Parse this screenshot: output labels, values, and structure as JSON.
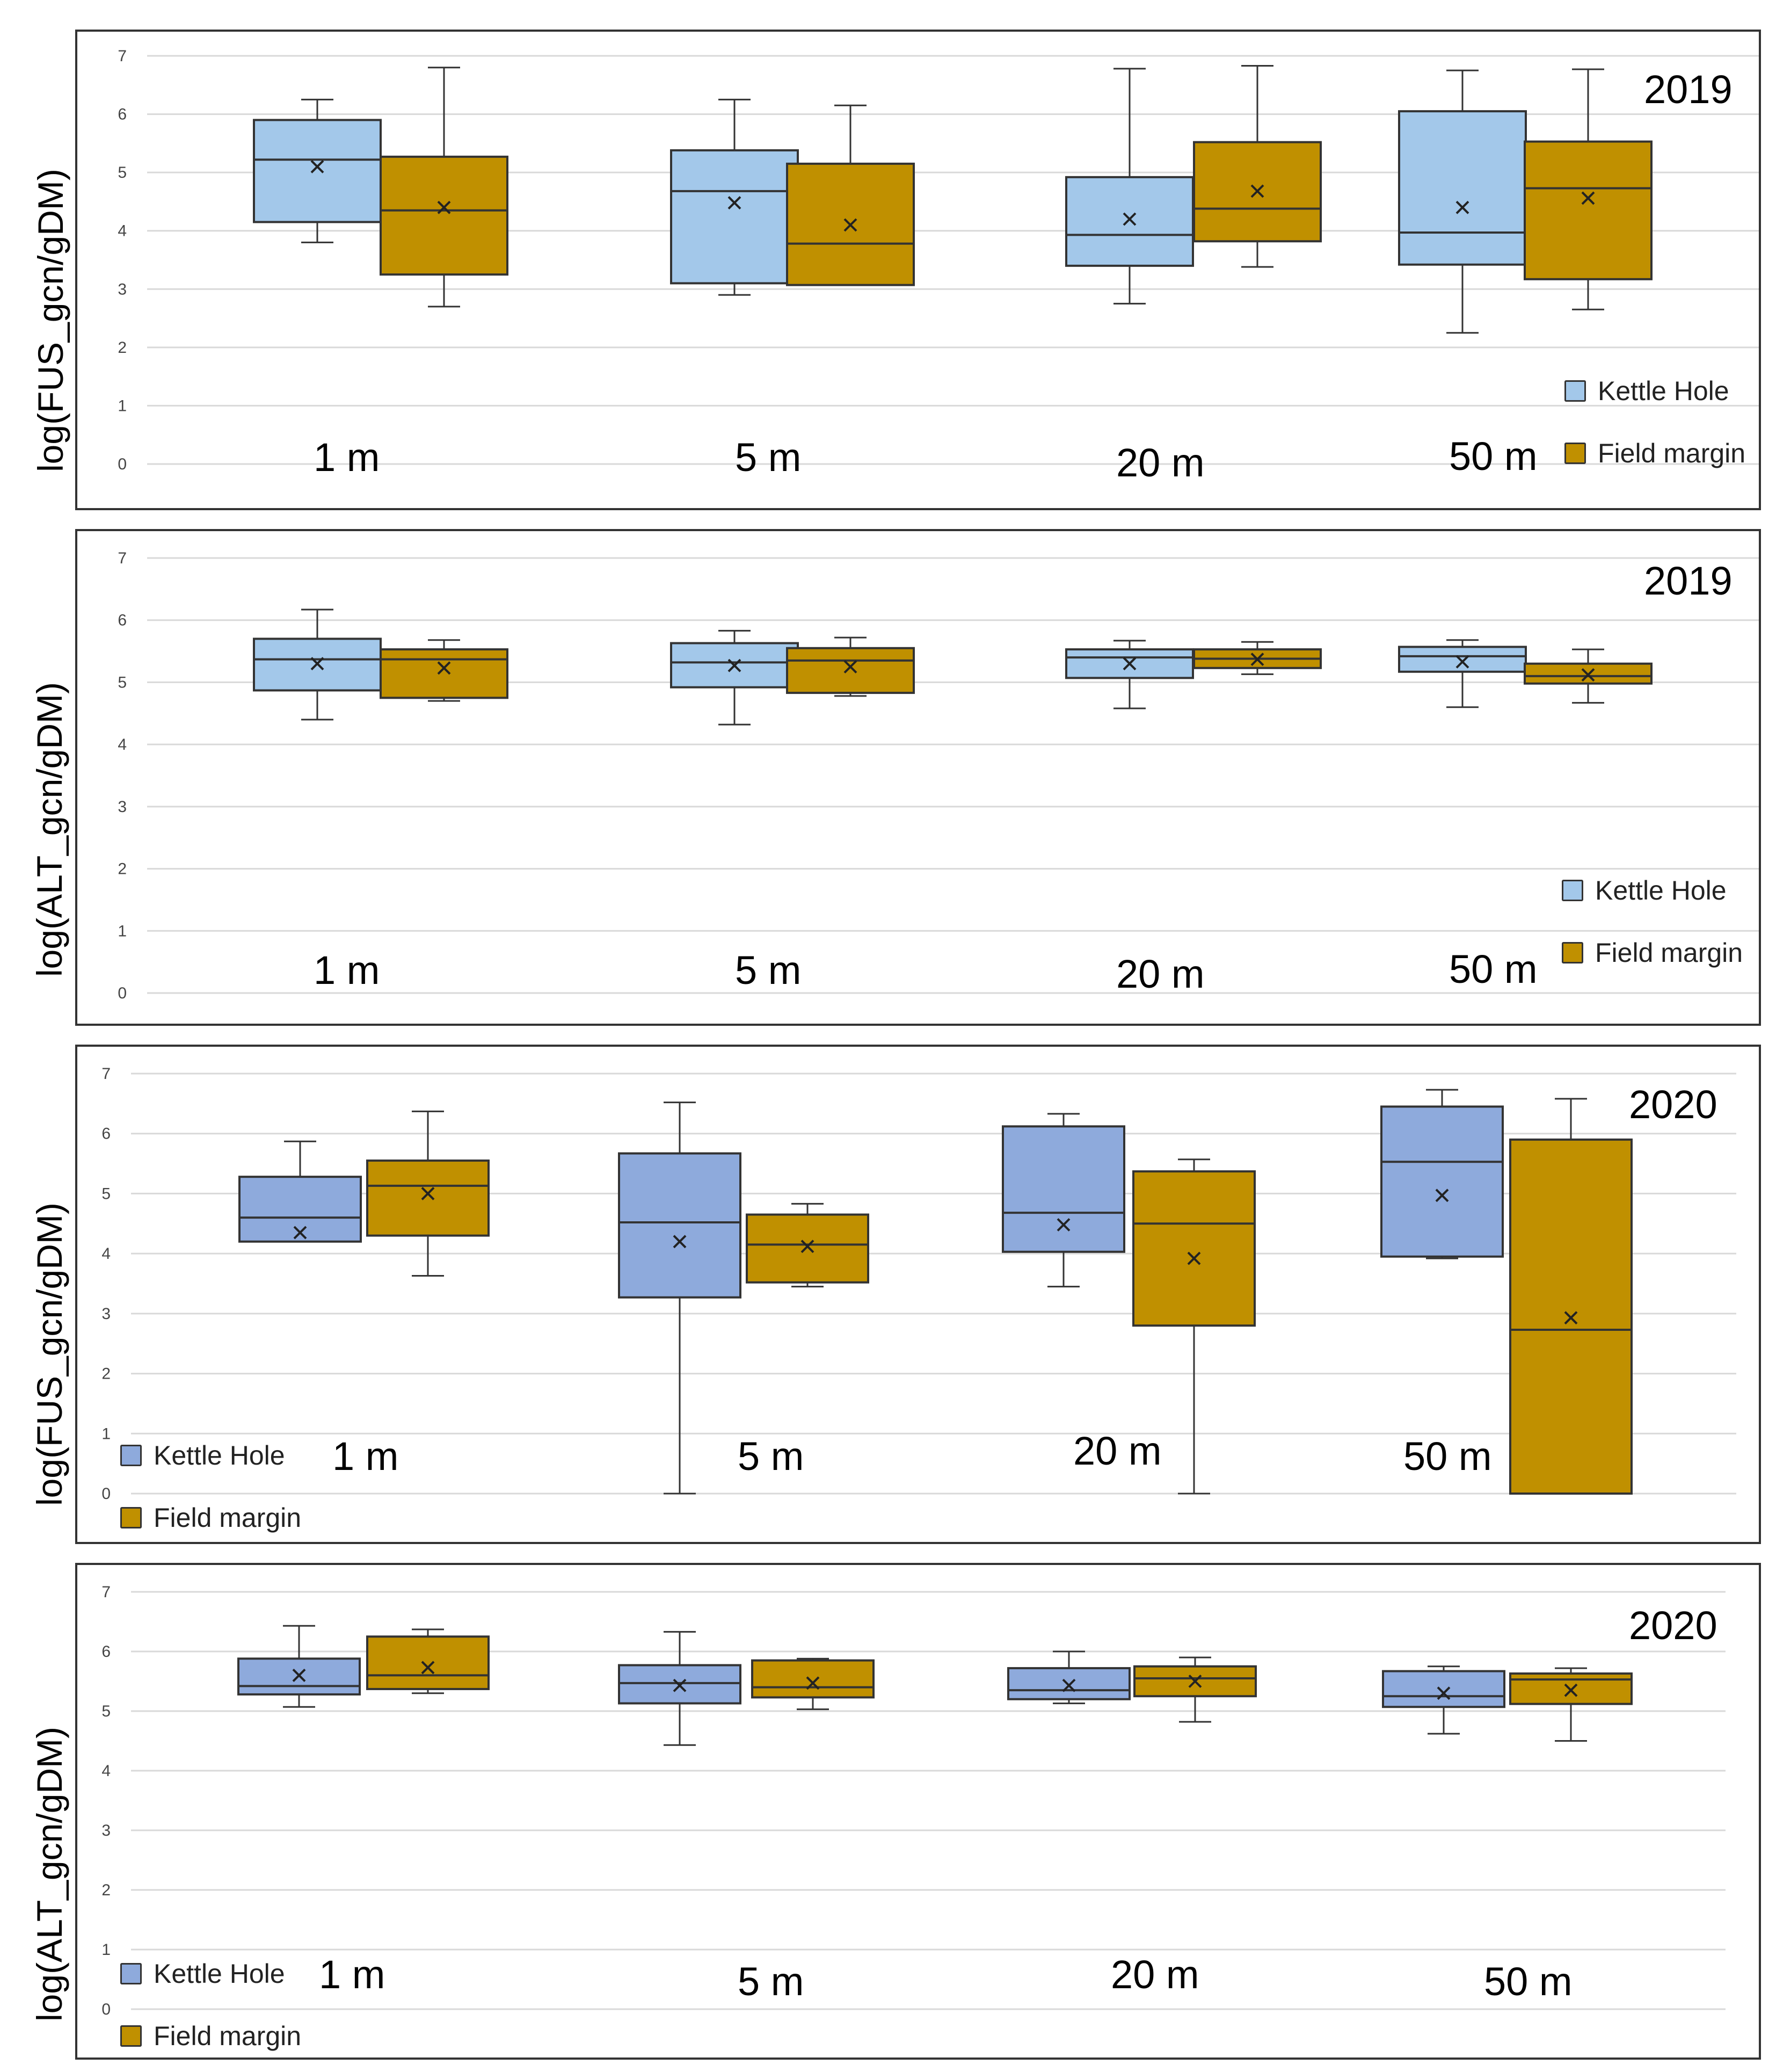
{
  "colors": {
    "kettle_light": "#a3c8ea",
    "kettle_dark": "#8eaadc",
    "field": "#c09000",
    "stroke": "#333333",
    "grid": "#d9d9d9"
  },
  "chart_data": [
    {
      "type": "box",
      "title": "2019",
      "ylabel": "log(FUS_gcn/gDM)",
      "ylim": [
        0,
        7
      ],
      "yticks": [
        "0",
        "1",
        "2",
        "3",
        "4",
        "5",
        "6",
        "7"
      ],
      "categories": [
        "1 m",
        "5 m",
        "20 m",
        "50 m"
      ],
      "legend": [
        "Kettle Hole",
        "Field margin"
      ],
      "legend_position": "bottom-right",
      "series": [
        {
          "name": "Kettle Hole",
          "color": "#a3c8ea",
          "boxes": [
            {
              "min": 3.8,
              "q1": 4.15,
              "median": 5.22,
              "q3": 5.9,
              "max": 6.25,
              "mean": 5.1
            },
            {
              "min": 2.9,
              "q1": 3.1,
              "median": 4.68,
              "q3": 5.38,
              "max": 6.25,
              "mean": 4.48
            },
            {
              "min": 2.75,
              "q1": 3.4,
              "median": 3.93,
              "q3": 4.92,
              "max": 6.78,
              "mean": 4.2
            },
            {
              "min": 2.25,
              "q1": 3.42,
              "median": 3.97,
              "q3": 6.05,
              "max": 6.75,
              "mean": 4.4
            }
          ]
        },
        {
          "name": "Field margin",
          "color": "#c09000",
          "boxes": [
            {
              "min": 2.7,
              "q1": 3.25,
              "median": 4.35,
              "q3": 5.27,
              "max": 6.8,
              "mean": 4.4
            },
            {
              "min": 3.07,
              "q1": 3.07,
              "median": 3.78,
              "q3": 5.15,
              "max": 6.15,
              "mean": 4.1
            },
            {
              "min": 3.38,
              "q1": 3.82,
              "median": 4.38,
              "q3": 5.52,
              "max": 6.83,
              "mean": 4.68
            },
            {
              "min": 2.65,
              "q1": 3.17,
              "median": 4.73,
              "q3": 5.53,
              "max": 6.77,
              "mean": 4.56
            }
          ]
        }
      ]
    },
    {
      "type": "box",
      "title": "2019",
      "ylabel": "log(ALT_gcn/gDM)",
      "ylim": [
        0,
        7
      ],
      "yticks": [
        "0",
        "1",
        "2",
        "3",
        "4",
        "5",
        "6",
        "7"
      ],
      "categories": [
        "1 m",
        "5 m",
        "20 m",
        "50 m"
      ],
      "legend": [
        "Kettle Hole",
        "Field margin"
      ],
      "legend_position": "bottom-right",
      "series": [
        {
          "name": "Kettle Hole",
          "color": "#a3c8ea",
          "boxes": [
            {
              "min": 4.4,
              "q1": 4.87,
              "median": 5.37,
              "q3": 5.7,
              "max": 6.17,
              "mean": 5.3
            },
            {
              "min": 4.32,
              "q1": 4.92,
              "median": 5.32,
              "q3": 5.63,
              "max": 5.83,
              "mean": 5.27
            },
            {
              "min": 4.58,
              "q1": 5.07,
              "median": 5.4,
              "q3": 5.53,
              "max": 5.67,
              "mean": 5.3
            },
            {
              "min": 4.6,
              "q1": 5.17,
              "median": 5.42,
              "q3": 5.57,
              "max": 5.68,
              "mean": 5.33
            }
          ]
        },
        {
          "name": "Field margin",
          "color": "#c09000",
          "boxes": [
            {
              "min": 4.7,
              "q1": 4.75,
              "median": 5.37,
              "q3": 5.53,
              "max": 5.68,
              "mean": 5.23
            },
            {
              "min": 4.78,
              "q1": 4.83,
              "median": 5.35,
              "q3": 5.55,
              "max": 5.72,
              "mean": 5.25
            },
            {
              "min": 5.13,
              "q1": 5.23,
              "median": 5.38,
              "q3": 5.53,
              "max": 5.65,
              "mean": 5.37
            },
            {
              "min": 4.67,
              "q1": 4.98,
              "median": 5.1,
              "q3": 5.3,
              "max": 5.53,
              "mean": 5.12
            }
          ]
        }
      ]
    },
    {
      "type": "box",
      "title": "2020",
      "ylabel": "log(FUS_gcn/gDM)",
      "ylim": [
        0,
        7
      ],
      "yticks": [
        "0",
        "1",
        "2",
        "3",
        "4",
        "5",
        "6",
        "7"
      ],
      "categories": [
        "1 m",
        "5 m",
        "20 m",
        "50 m"
      ],
      "legend": [
        "Kettle Hole",
        "Field margin"
      ],
      "legend_position": "bottom-left",
      "series": [
        {
          "name": "Kettle Hole",
          "color": "#8eaadc",
          "boxes": [
            {
              "min": 4.2,
              "q1": 4.2,
              "median": 4.6,
              "q3": 5.28,
              "max": 5.87,
              "mean": 4.35
            },
            {
              "min": 0.0,
              "q1": 3.27,
              "median": 4.52,
              "q3": 5.67,
              "max": 6.52,
              "mean": 4.2
            },
            {
              "min": 3.45,
              "q1": 4.03,
              "median": 4.68,
              "q3": 6.12,
              "max": 6.33,
              "mean": 4.48
            },
            {
              "min": 3.92,
              "q1": 3.95,
              "median": 5.53,
              "q3": 6.45,
              "max": 6.73,
              "mean": 4.97
            }
          ]
        },
        {
          "name": "Field margin",
          "color": "#c09000",
          "boxes": [
            {
              "min": 3.63,
              "q1": 4.3,
              "median": 5.13,
              "q3": 5.55,
              "max": 6.37,
              "mean": 5.0
            },
            {
              "min": 3.45,
              "q1": 3.52,
              "median": 4.15,
              "q3": 4.65,
              "max": 4.83,
              "mean": 4.12
            },
            {
              "min": 0.0,
              "q1": 2.8,
              "median": 4.5,
              "q3": 5.37,
              "max": 5.57,
              "mean": 3.92
            },
            {
              "min": 0.0,
              "q1": 0.0,
              "median": 2.73,
              "q3": 5.9,
              "max": 6.58,
              "mean": 2.93
            }
          ]
        }
      ]
    },
    {
      "type": "box",
      "title": "2020",
      "ylabel": "log(ALT_gcn/gDM)",
      "ylim": [
        0,
        7
      ],
      "yticks": [
        "0",
        "1",
        "2",
        "3",
        "4",
        "5",
        "6",
        "7"
      ],
      "categories": [
        "1 m",
        "5 m",
        "20 m",
        "50 m"
      ],
      "legend": [
        "Kettle Hole",
        "Field margin"
      ],
      "legend_position": "bottom-left",
      "series": [
        {
          "name": "Kettle Hole",
          "color": "#8eaadc",
          "boxes": [
            {
              "min": 5.07,
              "q1": 5.28,
              "median": 5.42,
              "q3": 5.88,
              "max": 6.43,
              "mean": 5.6
            },
            {
              "min": 4.43,
              "q1": 5.13,
              "median": 5.47,
              "q3": 5.77,
              "max": 6.33,
              "mean": 5.43
            },
            {
              "min": 5.13,
              "q1": 5.2,
              "median": 5.35,
              "q3": 5.72,
              "max": 6.0,
              "mean": 5.43
            },
            {
              "min": 4.62,
              "q1": 5.07,
              "median": 5.25,
              "q3": 5.67,
              "max": 5.75,
              "mean": 5.3
            }
          ]
        },
        {
          "name": "Field margin",
          "color": "#c09000",
          "boxes": [
            {
              "min": 5.3,
              "q1": 5.37,
              "median": 5.6,
              "q3": 6.25,
              "max": 6.37,
              "mean": 5.73
            },
            {
              "min": 5.03,
              "q1": 5.23,
              "median": 5.4,
              "q3": 5.85,
              "max": 5.88,
              "mean": 5.47
            },
            {
              "min": 4.82,
              "q1": 5.25,
              "median": 5.55,
              "q3": 5.75,
              "max": 5.9,
              "mean": 5.5
            },
            {
              "min": 4.5,
              "q1": 5.12,
              "median": 5.53,
              "q3": 5.63,
              "max": 5.72,
              "mean": 5.35
            }
          ]
        }
      ]
    }
  ]
}
